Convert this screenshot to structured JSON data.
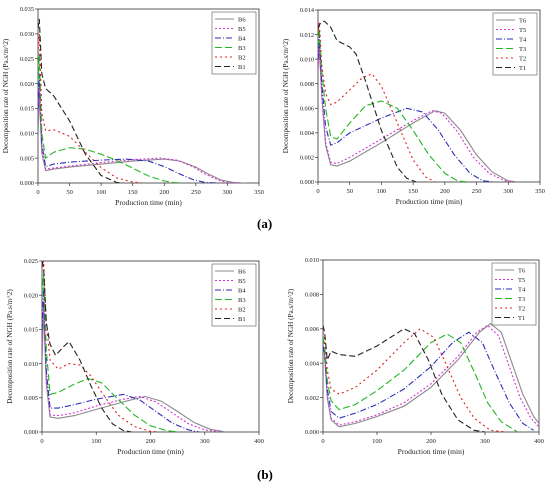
{
  "panel_labels": {
    "a": "(a)",
    "b": "(b)"
  },
  "chart_data": [
    {
      "type": "line",
      "xlabel": "Production time (min)",
      "ylabel": "Decomposition rate of NGH (Pa.s/m^2)",
      "xlim": [
        0,
        350
      ],
      "ylim": [
        0,
        0.035
      ],
      "xticks": [
        0,
        50,
        100,
        150,
        200,
        250,
        300,
        350
      ],
      "yticks": [
        0,
        0.005,
        0.01,
        0.015,
        0.02,
        0.025,
        0.03,
        0.035
      ],
      "ytick_labels": [
        "0.000",
        "0.005",
        "0.010",
        "0.015",
        "0.020",
        "0.025",
        "0.030",
        "0.035"
      ],
      "legend_position": "top-right",
      "series": [
        {
          "name": "B6",
          "color": "#8a8a8a",
          "dash": "",
          "x": [
            0,
            2,
            6,
            12,
            25,
            50,
            100,
            150,
            200,
            225,
            250,
            270,
            290,
            310,
            330
          ],
          "y": [
            0.009,
            0.018,
            0.006,
            0.0025,
            0.0028,
            0.0032,
            0.0038,
            0.0044,
            0.0048,
            0.0044,
            0.0032,
            0.0018,
            0.0006,
            0.0001,
            0.0
          ]
        },
        {
          "name": "B5",
          "color": "#d633d6",
          "dash": "2,2",
          "x": [
            0,
            2,
            6,
            12,
            25,
            50,
            100,
            150,
            195,
            220,
            245,
            265,
            285,
            300,
            320
          ],
          "y": [
            0.012,
            0.02,
            0.007,
            0.0028,
            0.003,
            0.0034,
            0.0041,
            0.0047,
            0.005,
            0.0046,
            0.0033,
            0.0018,
            0.0006,
            0.0001,
            0.0
          ]
        },
        {
          "name": "B4",
          "color": "#2e2eb8",
          "dash": "6,2,1,2",
          "x": [
            0,
            2,
            6,
            12,
            25,
            50,
            100,
            140,
            175,
            200,
            225,
            245,
            265,
            285
          ],
          "y": [
            0.015,
            0.022,
            0.008,
            0.0033,
            0.0038,
            0.0042,
            0.0046,
            0.0048,
            0.0044,
            0.0033,
            0.0018,
            0.0007,
            0.0001,
            0.0
          ]
        },
        {
          "name": "B3",
          "color": "#22b622",
          "dash": "7,3",
          "x": [
            0,
            2,
            6,
            12,
            25,
            50,
            75,
            100,
            125,
            150,
            175,
            200,
            215,
            230
          ],
          "y": [
            0.02,
            0.026,
            0.01,
            0.005,
            0.0062,
            0.0071,
            0.0068,
            0.0058,
            0.0045,
            0.003,
            0.0014,
            0.0004,
            0.0001,
            0.0
          ]
        },
        {
          "name": "B2",
          "color": "#e02020",
          "dash": "2,3",
          "x": [
            0,
            2,
            6,
            12,
            25,
            50,
            75,
            100,
            125,
            150,
            165
          ],
          "y": [
            0.026,
            0.03,
            0.014,
            0.0105,
            0.0107,
            0.0094,
            0.0062,
            0.0031,
            0.001,
            0.0002,
            0.0
          ]
        },
        {
          "name": "B1",
          "color": "#222222",
          "dash": "6,3",
          "x": [
            0,
            2,
            6,
            12,
            25,
            50,
            75,
            100,
            125,
            135
          ],
          "y": [
            0.031,
            0.033,
            0.022,
            0.019,
            0.0175,
            0.0125,
            0.0058,
            0.0015,
            0.0001,
            0.0
          ]
        }
      ]
    },
    {
      "type": "line",
      "xlabel": "Production time (min)",
      "ylabel": "Decomposition rate of NGH (Pa.s/m^2)",
      "xlim": [
        0,
        350
      ],
      "ylim": [
        0,
        0.014
      ],
      "xticks": [
        0,
        50,
        100,
        150,
        200,
        250,
        300,
        350
      ],
      "yticks": [
        0,
        0.002,
        0.004,
        0.006,
        0.008,
        0.01,
        0.012,
        0.014
      ],
      "ytick_labels": [
        "0.000",
        "0.002",
        "0.004",
        "0.006",
        "0.008",
        "0.010",
        "0.012",
        "0.014"
      ],
      "legend_position": "top-right",
      "series": [
        {
          "name": "T6",
          "color": "#8a8a8a",
          "dash": "",
          "x": [
            0,
            2,
            6,
            12,
            20,
            30,
            50,
            100,
            150,
            185,
            200,
            225,
            250,
            275,
            300,
            315
          ],
          "y": [
            0.009,
            0.011,
            0.007,
            0.003,
            0.0014,
            0.0013,
            0.0017,
            0.0032,
            0.0048,
            0.0058,
            0.0056,
            0.0042,
            0.0022,
            0.0008,
            0.0001,
            0.0
          ]
        },
        {
          "name": "T5",
          "color": "#d633d6",
          "dash": "2,2",
          "x": [
            0,
            2,
            6,
            12,
            20,
            30,
            50,
            100,
            150,
            180,
            195,
            220,
            245,
            270,
            295,
            310
          ],
          "y": [
            0.009,
            0.011,
            0.007,
            0.0032,
            0.0016,
            0.0015,
            0.002,
            0.0035,
            0.005,
            0.0058,
            0.0056,
            0.0041,
            0.002,
            0.0007,
            0.0001,
            0.0
          ]
        },
        {
          "name": "T4",
          "color": "#2e2eb8",
          "dash": "6,2,1,2",
          "x": [
            0,
            2,
            6,
            12,
            20,
            30,
            50,
            100,
            140,
            165,
            190,
            215,
            240,
            260,
            275
          ],
          "y": [
            0.01,
            0.012,
            0.008,
            0.0045,
            0.003,
            0.0032,
            0.004,
            0.0052,
            0.006,
            0.0057,
            0.0042,
            0.0022,
            0.0007,
            0.0001,
            0.0
          ]
        },
        {
          "name": "T3",
          "color": "#22b622",
          "dash": "7,3",
          "x": [
            0,
            2,
            6,
            12,
            20,
            30,
            50,
            75,
            100,
            125,
            150,
            175,
            200,
            220,
            235
          ],
          "y": [
            0.011,
            0.0125,
            0.009,
            0.006,
            0.0037,
            0.0035,
            0.0048,
            0.0062,
            0.0066,
            0.006,
            0.0042,
            0.0022,
            0.0007,
            0.0001,
            0.0
          ]
        },
        {
          "name": "T2",
          "color": "#e02020",
          "dash": "2,3",
          "x": [
            0,
            2,
            6,
            12,
            20,
            30,
            50,
            70,
            85,
            100,
            125,
            150,
            170,
            185
          ],
          "y": [
            0.012,
            0.013,
            0.0095,
            0.0072,
            0.0063,
            0.0065,
            0.0075,
            0.0085,
            0.0088,
            0.0078,
            0.0048,
            0.0018,
            0.0004,
            0.0
          ]
        },
        {
          "name": "T1",
          "color": "#222222",
          "dash": "6,3",
          "x": [
            0,
            2,
            6,
            10,
            20,
            30,
            50,
            60,
            75,
            100,
            125,
            140,
            155
          ],
          "y": [
            0.0125,
            0.0128,
            0.013,
            0.0131,
            0.0126,
            0.0115,
            0.011,
            0.0104,
            0.0082,
            0.0042,
            0.0012,
            0.0003,
            0.0
          ]
        }
      ]
    },
    {
      "type": "line",
      "xlabel": "Production time (min)",
      "ylabel": "Decomposition rate of NGH (Pa.s/m^2)",
      "xlim": [
        0,
        400
      ],
      "ylim": [
        0,
        0.025
      ],
      "xticks": [
        0,
        100,
        200,
        300,
        400
      ],
      "yticks": [
        0,
        0.005,
        0.01,
        0.015,
        0.02,
        0.025
      ],
      "ytick_labels": [
        "0.000",
        "0.005",
        "0.010",
        "0.015",
        "0.020",
        "0.025"
      ],
      "legend_position": "top-right",
      "series": [
        {
          "name": "B6",
          "color": "#8a8a8a",
          "dash": "",
          "x": [
            0,
            3,
            8,
            15,
            30,
            60,
            100,
            150,
            190,
            220,
            250,
            280,
            310,
            340
          ],
          "y": [
            0.01,
            0.018,
            0.007,
            0.0022,
            0.002,
            0.0024,
            0.0033,
            0.0044,
            0.0052,
            0.0045,
            0.003,
            0.0014,
            0.0004,
            0.0
          ]
        },
        {
          "name": "B5",
          "color": "#d633d6",
          "dash": "2,2",
          "x": [
            0,
            3,
            8,
            15,
            30,
            60,
            100,
            150,
            180,
            210,
            240,
            270,
            300,
            330
          ],
          "y": [
            0.012,
            0.019,
            0.008,
            0.0025,
            0.0024,
            0.0028,
            0.0038,
            0.0048,
            0.0052,
            0.0044,
            0.0028,
            0.0012,
            0.0003,
            0.0
          ]
        },
        {
          "name": "B4",
          "color": "#2e2eb8",
          "dash": "6,2,1,2",
          "x": [
            0,
            3,
            8,
            15,
            30,
            60,
            100,
            150,
            180,
            210,
            240,
            270,
            290
          ],
          "y": [
            0.015,
            0.021,
            0.009,
            0.0035,
            0.0035,
            0.004,
            0.0048,
            0.0055,
            0.0047,
            0.003,
            0.0013,
            0.0003,
            0.0
          ]
        },
        {
          "name": "B3",
          "color": "#22b622",
          "dash": "7,3",
          "x": [
            0,
            3,
            8,
            15,
            30,
            60,
            85,
            110,
            140,
            170,
            200,
            230,
            250
          ],
          "y": [
            0.02,
            0.023,
            0.012,
            0.0055,
            0.0058,
            0.007,
            0.0078,
            0.0072,
            0.0048,
            0.0025,
            0.0009,
            0.0002,
            0.0
          ]
        },
        {
          "name": "B2",
          "color": "#e02020",
          "dash": "2,3",
          "x": [
            0,
            3,
            8,
            15,
            30,
            50,
            70,
            90,
            110,
            140,
            170,
            200,
            215
          ],
          "y": [
            0.024,
            0.025,
            0.016,
            0.0105,
            0.0092,
            0.01,
            0.0098,
            0.0082,
            0.0058,
            0.0025,
            0.0008,
            0.0001,
            0.0
          ]
        },
        {
          "name": "B1",
          "color": "#222222",
          "dash": "6,3",
          "x": [
            0,
            3,
            8,
            15,
            25,
            40,
            50,
            70,
            90,
            110,
            130,
            150,
            165
          ],
          "y": [
            0.025,
            0.024,
            0.016,
            0.0128,
            0.0112,
            0.0125,
            0.0132,
            0.0105,
            0.0068,
            0.0035,
            0.0012,
            0.0002,
            0.0
          ]
        }
      ]
    },
    {
      "type": "line",
      "xlabel": "Production time (min)",
      "ylabel": "Decomposition rate of NGH (Pa.s/m^2)",
      "xlim": [
        0,
        400
      ],
      "ylim": [
        0,
        0.01
      ],
      "xticks": [
        0,
        100,
        200,
        300,
        400
      ],
      "yticks": [
        0,
        0.002,
        0.004,
        0.006,
        0.008,
        0.01
      ],
      "ytick_labels": [
        "0.000",
        "0.002",
        "0.004",
        "0.006",
        "0.008",
        "0.010"
      ],
      "legend_position": "top-right",
      "series": [
        {
          "name": "T6",
          "color": "#8a8a8a",
          "dash": "",
          "x": [
            0,
            3,
            8,
            15,
            30,
            60,
            100,
            150,
            200,
            250,
            290,
            310,
            330,
            350,
            370,
            390,
            400
          ],
          "y": [
            0.005,
            0.0045,
            0.002,
            0.0007,
            0.0003,
            0.0005,
            0.0009,
            0.0015,
            0.0026,
            0.0042,
            0.0058,
            0.0063,
            0.0058,
            0.004,
            0.0022,
            0.0009,
            0.0005
          ]
        },
        {
          "name": "T5",
          "color": "#d633d6",
          "dash": "2,2",
          "x": [
            0,
            3,
            8,
            15,
            30,
            60,
            100,
            150,
            200,
            250,
            285,
            305,
            325,
            345,
            365,
            385,
            400
          ],
          "y": [
            0.005,
            0.0045,
            0.002,
            0.0008,
            0.0004,
            0.0006,
            0.001,
            0.0017,
            0.0028,
            0.0044,
            0.0058,
            0.0062,
            0.0056,
            0.0038,
            0.002,
            0.0008,
            0.0003
          ]
        },
        {
          "name": "T4",
          "color": "#2e2eb8",
          "dash": "6,2,1,2",
          "x": [
            0,
            3,
            8,
            15,
            30,
            60,
            100,
            150,
            200,
            240,
            270,
            295,
            320,
            345,
            370,
            390
          ],
          "y": [
            0.005,
            0.0046,
            0.0025,
            0.0012,
            0.0008,
            0.0011,
            0.0016,
            0.0025,
            0.0038,
            0.0052,
            0.0058,
            0.0052,
            0.0034,
            0.0017,
            0.0005,
            0.0001
          ]
        },
        {
          "name": "T3",
          "color": "#22b622",
          "dash": "7,3",
          "x": [
            0,
            3,
            8,
            15,
            30,
            60,
            100,
            150,
            200,
            230,
            255,
            280,
            305,
            330,
            360
          ],
          "y": [
            0.0055,
            0.005,
            0.003,
            0.0018,
            0.0013,
            0.0016,
            0.0024,
            0.0036,
            0.0052,
            0.0057,
            0.0052,
            0.0035,
            0.0017,
            0.0006,
            0.0
          ]
        },
        {
          "name": "T2",
          "color": "#e02020",
          "dash": "2,3",
          "x": [
            0,
            3,
            8,
            15,
            30,
            60,
            100,
            150,
            180,
            205,
            230,
            255,
            280,
            310,
            340
          ],
          "y": [
            0.0058,
            0.0054,
            0.0036,
            0.0025,
            0.0022,
            0.0026,
            0.0036,
            0.0052,
            0.006,
            0.0055,
            0.0038,
            0.002,
            0.0008,
            0.0001,
            0.0
          ]
        },
        {
          "name": "T1",
          "color": "#222222",
          "dash": "6,3",
          "x": [
            0,
            3,
            8,
            15,
            30,
            60,
            100,
            130,
            150,
            170,
            195,
            220,
            250,
            280,
            300
          ],
          "y": [
            0.0062,
            0.0058,
            0.0042,
            0.0047,
            0.0045,
            0.0044,
            0.005,
            0.0056,
            0.006,
            0.0057,
            0.0042,
            0.0022,
            0.0007,
            0.0001,
            0.0
          ]
        }
      ]
    }
  ]
}
